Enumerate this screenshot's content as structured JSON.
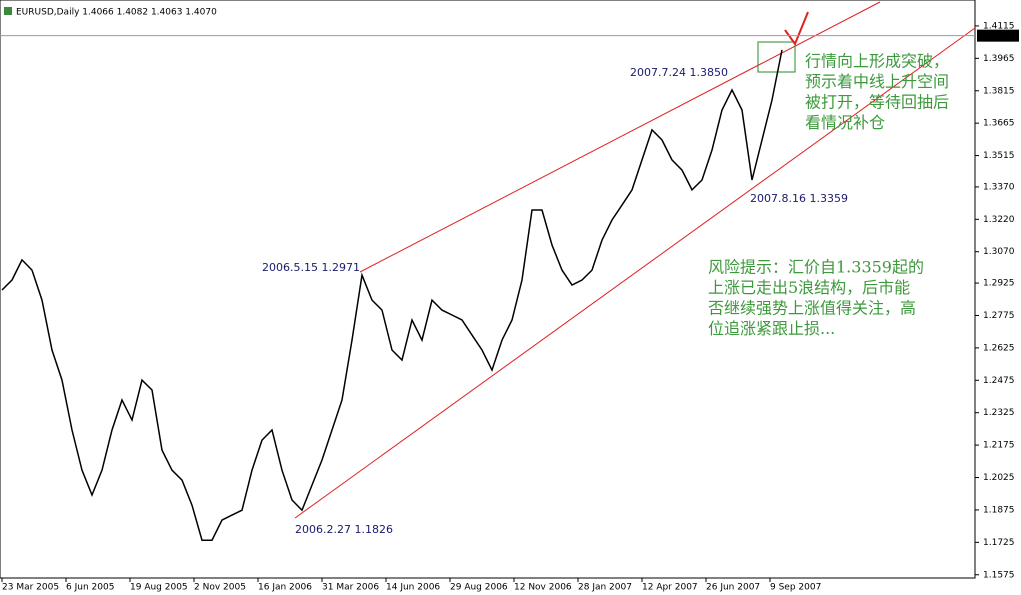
{
  "header": "EURUSD,Daily  1.4066 1.4082 1.4063 1.4070",
  "chart_data": {
    "type": "line",
    "color": "#000000",
    "ylim": [
      1.156,
      1.4235
    ],
    "yticks": [
      1.4115,
      1.3965,
      1.3815,
      1.3665,
      1.3515,
      {
        "value": 1.337,
        "label": "1.3370"
      },
      {
        "value": 1.322,
        "label": "1.3220"
      },
      {
        "value": 1.307,
        "label": "1.3070"
      },
      1.2925,
      1.2775,
      1.2625,
      1.2475,
      1.2325,
      1.2175,
      1.2025,
      1.1875,
      1.1725,
      1.1575
    ],
    "current_price": {
      "value": 1.407,
      "label": "1.4070"
    },
    "date_labels": [
      "23 Mar 2005",
      "6 Jun 2005",
      "19 Aug 2005",
      "2 Nov 2005",
      "16 Jan 2006",
      "31 Mar 2006",
      "14 Jun 2006",
      "29 Aug 2006",
      "12 Nov 2006",
      "28 Jan 2007",
      "12 Apr 2007",
      "26 Jun 2007",
      "9 Sep 2007"
    ],
    "values": [
      1.2893,
      1.2939,
      1.3032,
      1.2985,
      1.2846,
      1.2615,
      1.2476,
      1.2245,
      1.2059,
      1.1944,
      1.2059,
      1.2245,
      1.2384,
      1.2291,
      1.2476,
      1.243,
      1.2152,
      1.2059,
      1.2013,
      1.1897,
      1.1735,
      1.1735,
      1.1828,
      1.1851,
      1.1874,
      1.2059,
      1.2198,
      1.2245,
      1.2059,
      1.1921,
      1.1874,
      1.199,
      1.2106,
      1.2245,
      1.2384,
      1.2661,
      1.2962,
      1.2846,
      1.28,
      1.2615,
      1.2569,
      1.2754,
      1.2661,
      1.2846,
      1.28,
      1.2777,
      1.2754,
      1.2684,
      1.2615,
      1.2522,
      1.2661,
      1.2754,
      1.2939,
      1.3263,
      1.3263,
      1.3101,
      1.2985,
      1.2916,
      1.2939,
      1.2985,
      1.3124,
      1.3217,
      1.3286,
      1.3356,
      1.3495,
      1.3634,
      1.3587,
      1.3495,
      1.3448,
      1.3356,
      1.3402,
      1.3541,
      1.3726,
      1.3819,
      1.3726,
      1.3402,
      1.3587,
      1.3772,
      1.4004
    ],
    "annotations": [
      "2006.5.15 1.2971",
      "2006.2.27 1.1826",
      "2007.7.24 1.3850",
      "2007.8.16 1.3359"
    ],
    "comment_1": [
      "行情向上形成突破，",
      "预示着中线上升空间",
      "被打开，等待回抽后",
      "看情况补仓"
    ],
    "comment_2": [
      "风险提示：汇价自1.3359起的",
      "上涨已走出5浪结构，后市能",
      "否继续强势上涨值得关注，高",
      "位追涨紧跟止损..."
    ]
  }
}
